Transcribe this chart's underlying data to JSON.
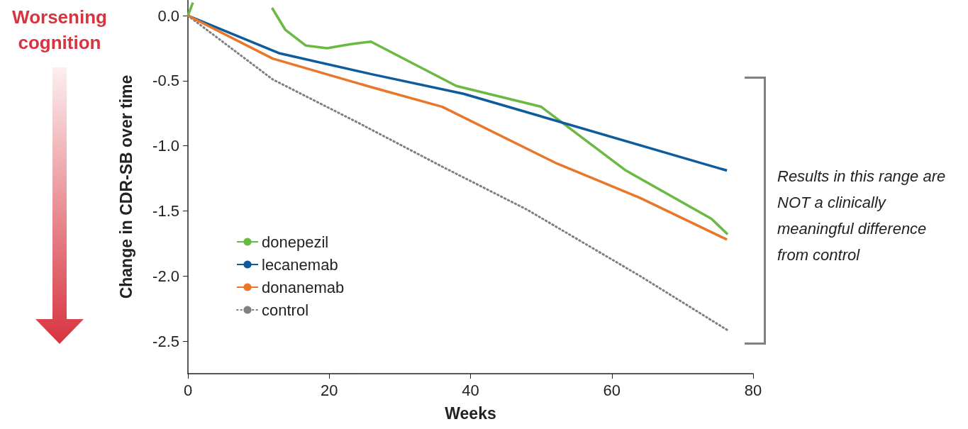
{
  "chart_data": {
    "type": "line",
    "xlabel": "Weeks",
    "ylabel": "Change in CDR-SB over time",
    "annotations": [
      "Worsening cognition",
      "Results in this range are NOT a clinically meaningful difference from control"
    ],
    "xlim": [
      0,
      80
    ],
    "xticks": [
      0,
      20,
      40,
      60,
      80
    ],
    "ylim": [
      -2.75,
      0.12
    ],
    "yticks": [
      {
        "value": 0,
        "label": "0.0"
      },
      -0.5,
      {
        "value": -1,
        "label": "-1.0"
      },
      -1.5,
      {
        "value": -2,
        "label": "-2.0"
      },
      -2.5
    ],
    "grid": false,
    "legend": "bottom left",
    "marker": "none",
    "series": [
      {
        "name": "donepezil",
        "color": "#6ab942",
        "line_style": "solid",
        "x": [
          0,
          0.7,
          1.8,
          5,
          9.5,
          11.9,
          13.8,
          16.7,
          19.7,
          22.9,
          25.9,
          38,
          50,
          62,
          74.1,
          76.4
        ],
        "values": [
          0,
          0.1,
          null,
          null,
          null,
          0.06,
          -0.11,
          -0.23,
          -0.25,
          -0.22,
          -0.2,
          -0.54,
          -0.7,
          -1.19,
          -1.56,
          -1.68
        ]
      },
      {
        "name": "lecanemab",
        "color": "#0f5c9c",
        "line_style": "solid",
        "x": [
          0,
          13,
          26,
          39,
          76.3
        ],
        "values": [
          0,
          -0.29,
          -0.45,
          -0.6,
          -1.19
        ]
      },
      {
        "name": "donanemab",
        "color": "#e9772a",
        "line_style": "solid",
        "x": [
          0,
          12,
          26,
          36,
          52,
          64,
          76.3
        ],
        "values": [
          0,
          -0.33,
          -0.55,
          -0.7,
          -1.13,
          -1.4,
          -1.72
        ]
      },
      {
        "name": "control",
        "color": "#808080",
        "line_style": "dotted",
        "x": [
          0,
          12,
          24,
          36,
          48,
          64,
          76.5
        ],
        "values": [
          0,
          -0.49,
          -0.82,
          -1.16,
          -1.49,
          -2,
          -2.42
        ]
      }
    ]
  }
}
